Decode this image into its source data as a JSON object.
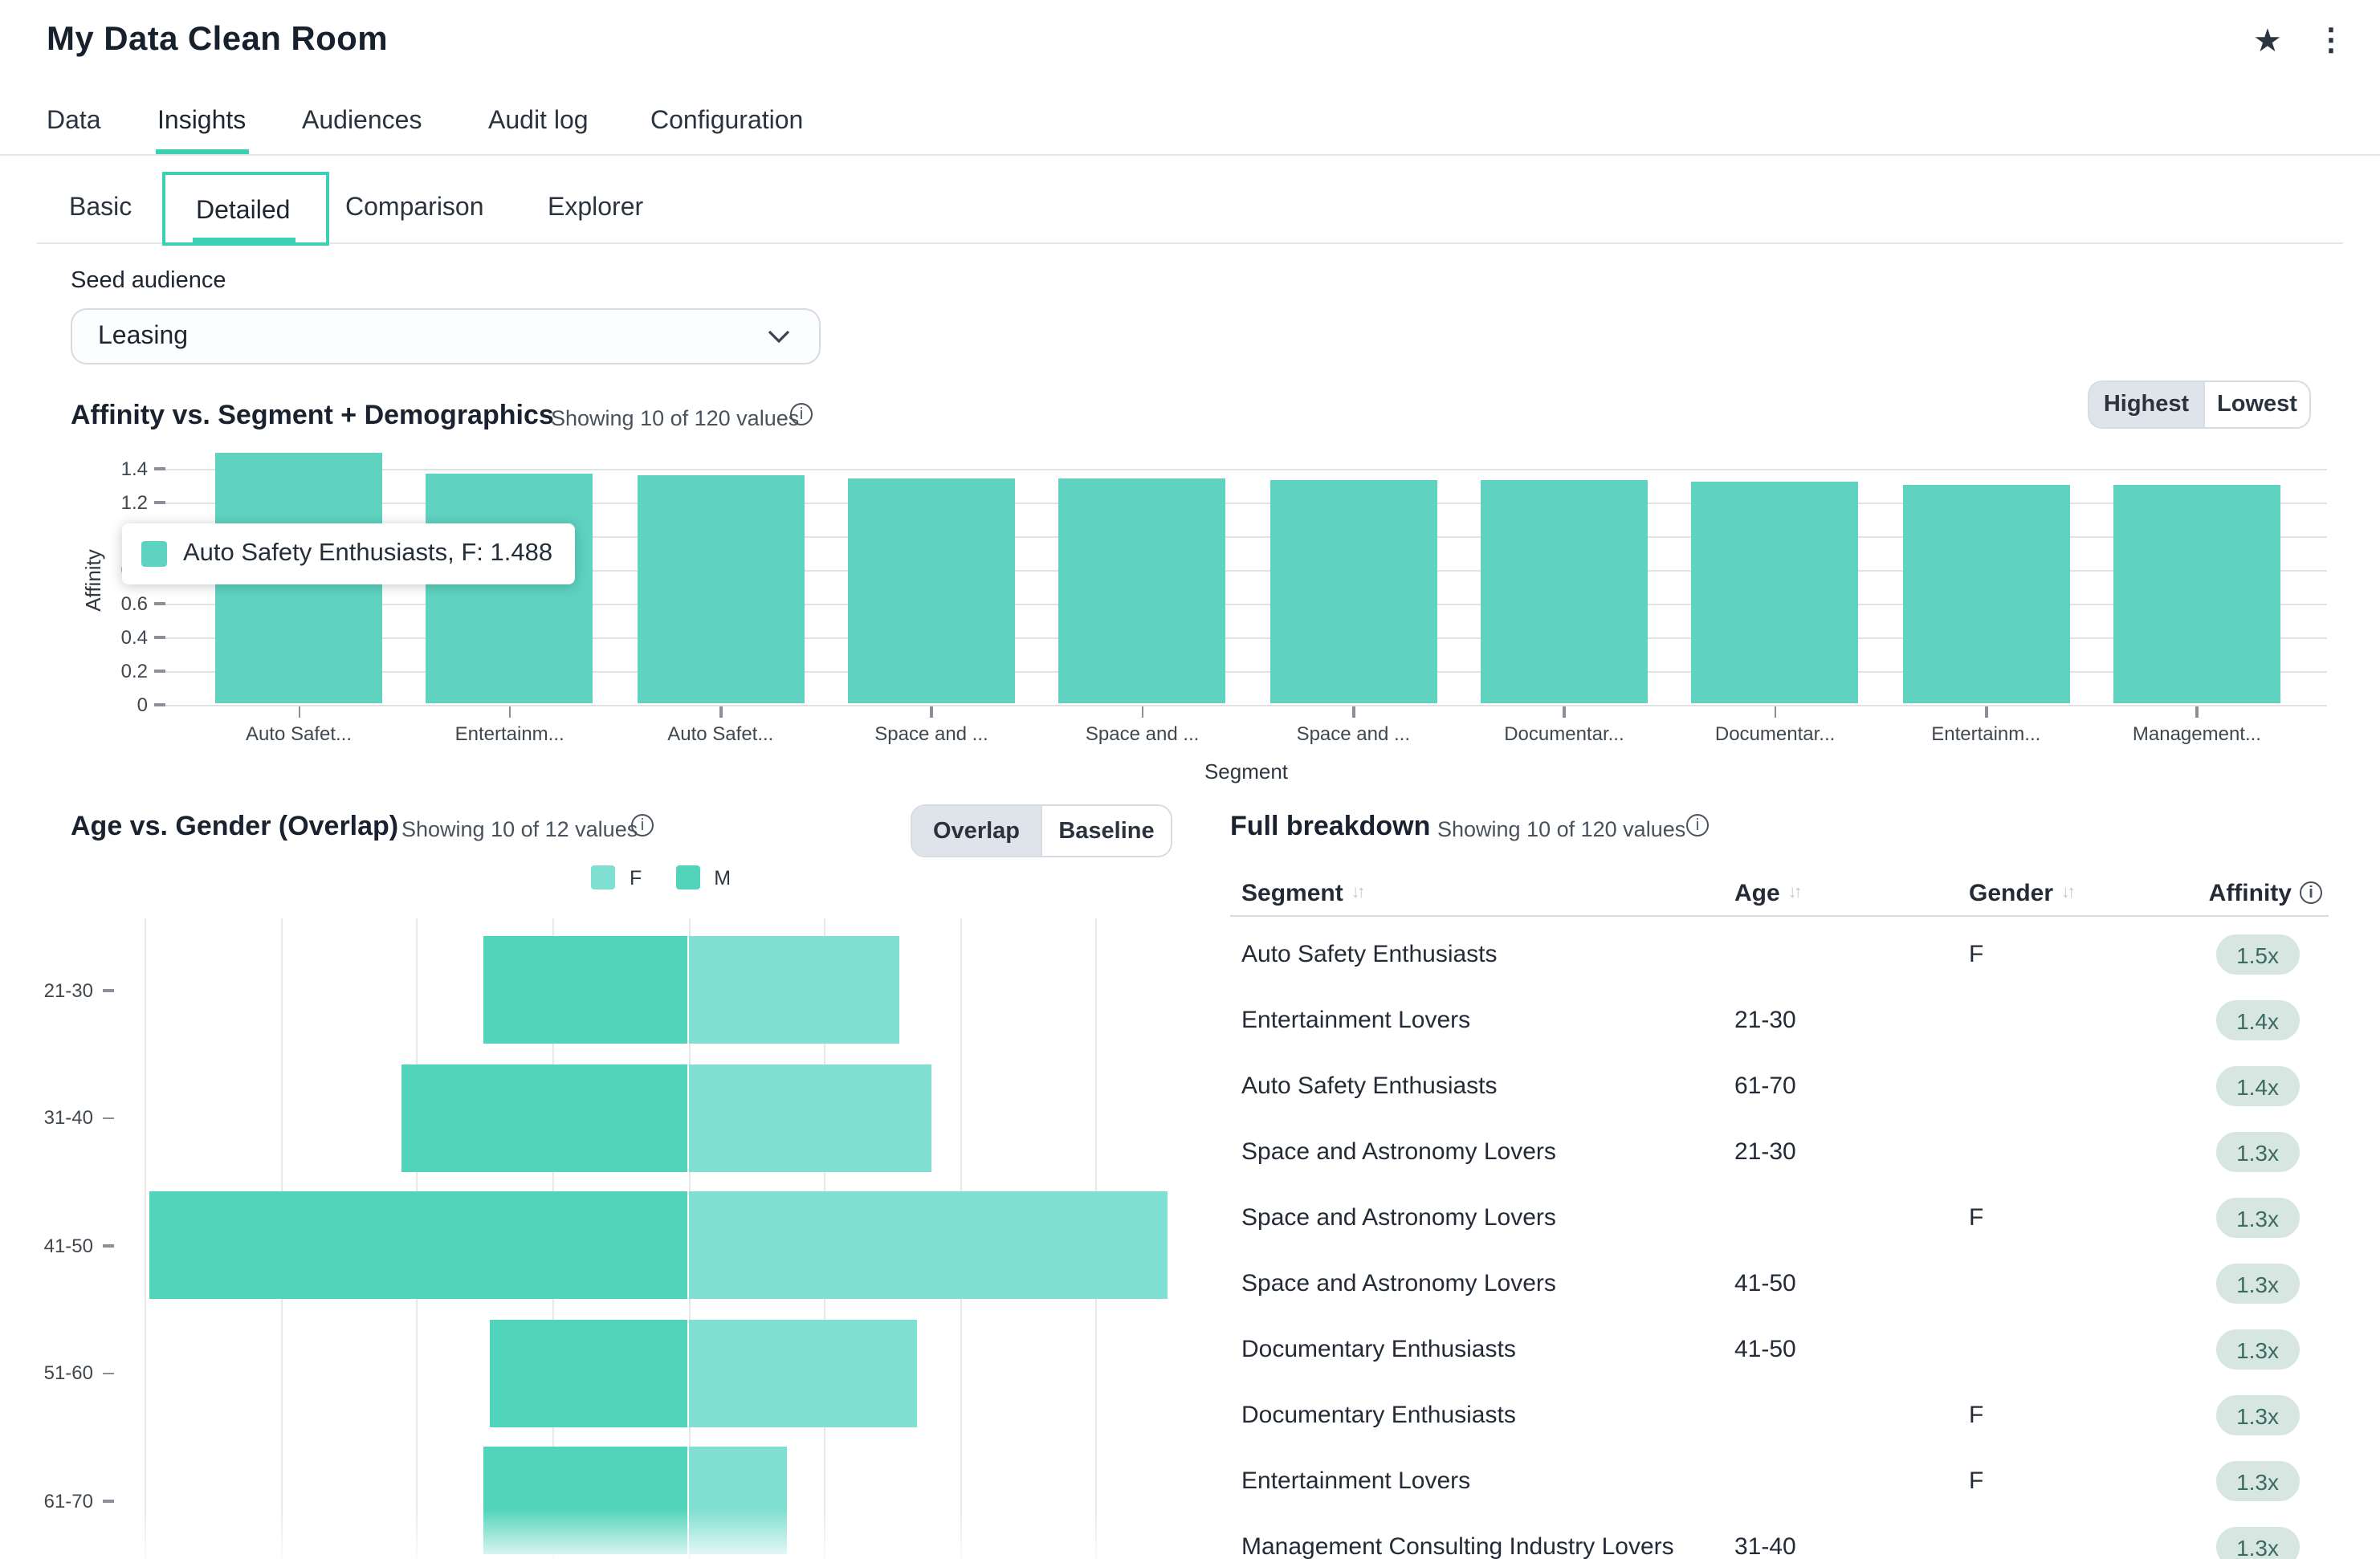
{
  "header": {
    "title": "My Data Clean Room",
    "star_icon": "favorite-star",
    "kebab_icon": "more-options"
  },
  "nav": {
    "tabs": [
      {
        "label": "Data",
        "active": false
      },
      {
        "label": "Insights",
        "active": true
      },
      {
        "label": "Audiences",
        "active": false
      },
      {
        "label": "Audit log",
        "active": false
      },
      {
        "label": "Configuration",
        "active": false
      }
    ]
  },
  "subnav": {
    "tabs": [
      {
        "label": "Basic",
        "active": false
      },
      {
        "label": "Detailed",
        "active": true
      },
      {
        "label": "Comparison",
        "active": false
      },
      {
        "label": "Explorer",
        "active": false
      }
    ]
  },
  "seed_audience": {
    "label": "Seed audience",
    "value": "Leasing"
  },
  "colors": {
    "accent": "#3bcfb3",
    "bar": "#5fd3c0",
    "male": "#52d4bb",
    "female": "#7fdfd0",
    "segment_selected_bg": "#dfe4eb",
    "badge_bg": "#d8e6e1",
    "badge_text": "#3a6a60"
  },
  "chart_data": [
    {
      "type": "bar",
      "title": "Affinity vs. Segment + Demographics",
      "subtitle": "Showing 10 of 120 values",
      "categories": [
        "Auto Safet...",
        "Entertainm...",
        "Auto Safet...",
        "Space and ...",
        "Space and ...",
        "Space and ...",
        "Documentar...",
        "Documentar...",
        "Entertainm...",
        "Management..."
      ],
      "values": [
        1.488,
        1.365,
        1.36,
        1.34,
        1.338,
        1.328,
        1.326,
        1.32,
        1.303,
        1.297
      ],
      "xlabel": "Segment",
      "ylabel": "Affinity",
      "ylim": [
        0,
        1.5
      ],
      "yticks": [
        0,
        0.2,
        0.4,
        0.6,
        0.8,
        1,
        1.2,
        1.4
      ],
      "ytick_labels": [
        "0",
        "0.2",
        "0.4",
        "0.6",
        "0.8",
        "1",
        "1.2",
        "1.4"
      ],
      "grid": true,
      "legend_position": "none",
      "bar_color": "#5fd3c0",
      "toggle": {
        "options": [
          "Highest",
          "Lowest"
        ],
        "selected": "Highest"
      },
      "tooltip": {
        "label": "Auto Safety Enthusiasts, F: 1.488",
        "swatch_color": "#5fd3c0"
      }
    },
    {
      "type": "bar",
      "orientation": "horizontal-pyramid",
      "title": "Age vs. Gender (Overlap)",
      "subtitle": "Showing 10 of 12 values",
      "categories": [
        "21-30",
        "31-40",
        "41-50",
        "51-60",
        "61-70"
      ],
      "series": [
        {
          "name": "M",
          "side": "left",
          "color": "#52d4bb",
          "values": [
            1.51,
            2.11,
            3.96,
            1.46,
            1.51
          ]
        },
        {
          "name": "F",
          "side": "right",
          "color": "#7fdfd0",
          "values": [
            1.56,
            1.79,
            3.53,
            1.68,
            0.73
          ]
        }
      ],
      "legend": [
        {
          "label": "F",
          "color": "#7fdfd0"
        },
        {
          "label": "M",
          "color": "#52d4bb"
        }
      ],
      "legend_position": "top",
      "grid": true,
      "toggle": {
        "options": [
          "Overlap",
          "Baseline"
        ],
        "selected": "Overlap"
      }
    }
  ],
  "breakdown": {
    "title": "Full breakdown",
    "subtitle": "Showing 10 of 120 values",
    "columns": [
      {
        "label": "Segment",
        "sortable": true
      },
      {
        "label": "Age",
        "sortable": true
      },
      {
        "label": "Gender",
        "sortable": true
      },
      {
        "label": "Affinity",
        "info": true
      }
    ],
    "rows": [
      {
        "segment": "Auto Safety Enthusiasts",
        "age": "",
        "gender": "F",
        "affinity": "1.5x"
      },
      {
        "segment": "Entertainment Lovers",
        "age": "21-30",
        "gender": "",
        "affinity": "1.4x"
      },
      {
        "segment": "Auto Safety Enthusiasts",
        "age": "61-70",
        "gender": "",
        "affinity": "1.4x"
      },
      {
        "segment": "Space and Astronomy Lovers",
        "age": "21-30",
        "gender": "",
        "affinity": "1.3x"
      },
      {
        "segment": "Space and Astronomy Lovers",
        "age": "",
        "gender": "F",
        "affinity": "1.3x"
      },
      {
        "segment": "Space and Astronomy Lovers",
        "age": "41-50",
        "gender": "",
        "affinity": "1.3x"
      },
      {
        "segment": "Documentary Enthusiasts",
        "age": "41-50",
        "gender": "",
        "affinity": "1.3x"
      },
      {
        "segment": "Documentary Enthusiasts",
        "age": "",
        "gender": "F",
        "affinity": "1.3x"
      },
      {
        "segment": "Entertainment Lovers",
        "age": "",
        "gender": "F",
        "affinity": "1.3x"
      },
      {
        "segment": "Management Consulting Industry Lovers",
        "age": "31-40",
        "gender": "",
        "affinity": "1.3x"
      }
    ]
  }
}
